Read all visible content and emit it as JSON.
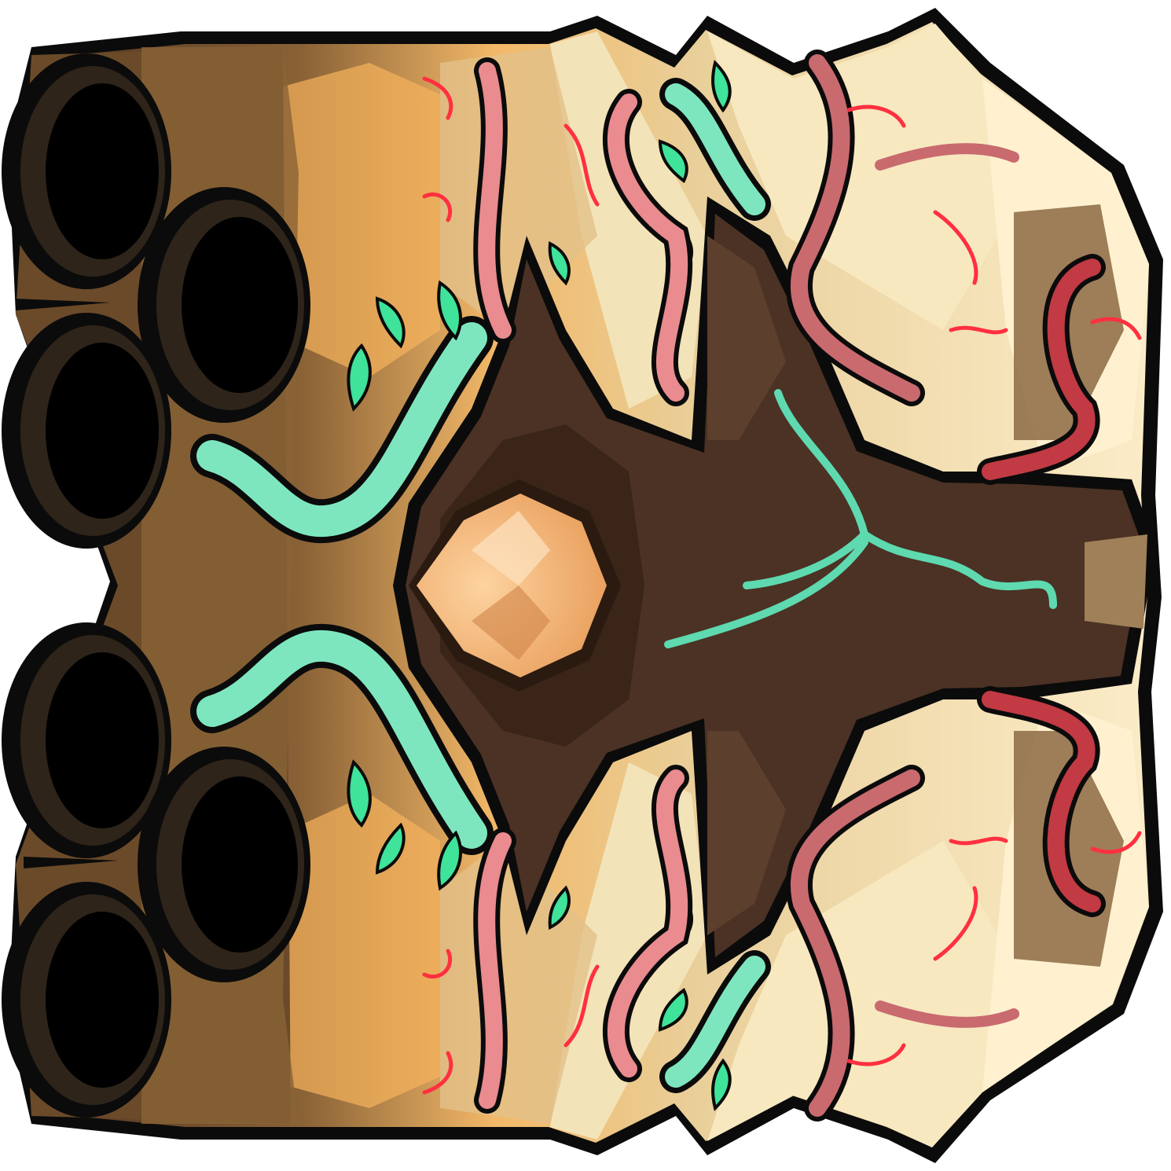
{
  "sprite": {
    "subject": "turret-sprite",
    "barrel_count": 6,
    "palette": {
      "outline": "#0b0b0b",
      "barrel_dark": "#140d08",
      "barrel_ring": "#2e2419",
      "wood_dark": "#4a3020",
      "wood_mid": "#7a5630",
      "wood_light": "#c89b5c",
      "bone_light": "#f3e3b8",
      "bone_shadow": "#b89a6a",
      "vine_teal": "#7ee6bf",
      "vine_teal_dark": "#4aa88a",
      "leaf_green": "#3fe39a",
      "root_pink": "#e98b8f",
      "root_red": "#c23a43",
      "vein_red": "#ff3040",
      "core_orange": "#f9b878",
      "trunk": "#4b3224"
    }
  }
}
